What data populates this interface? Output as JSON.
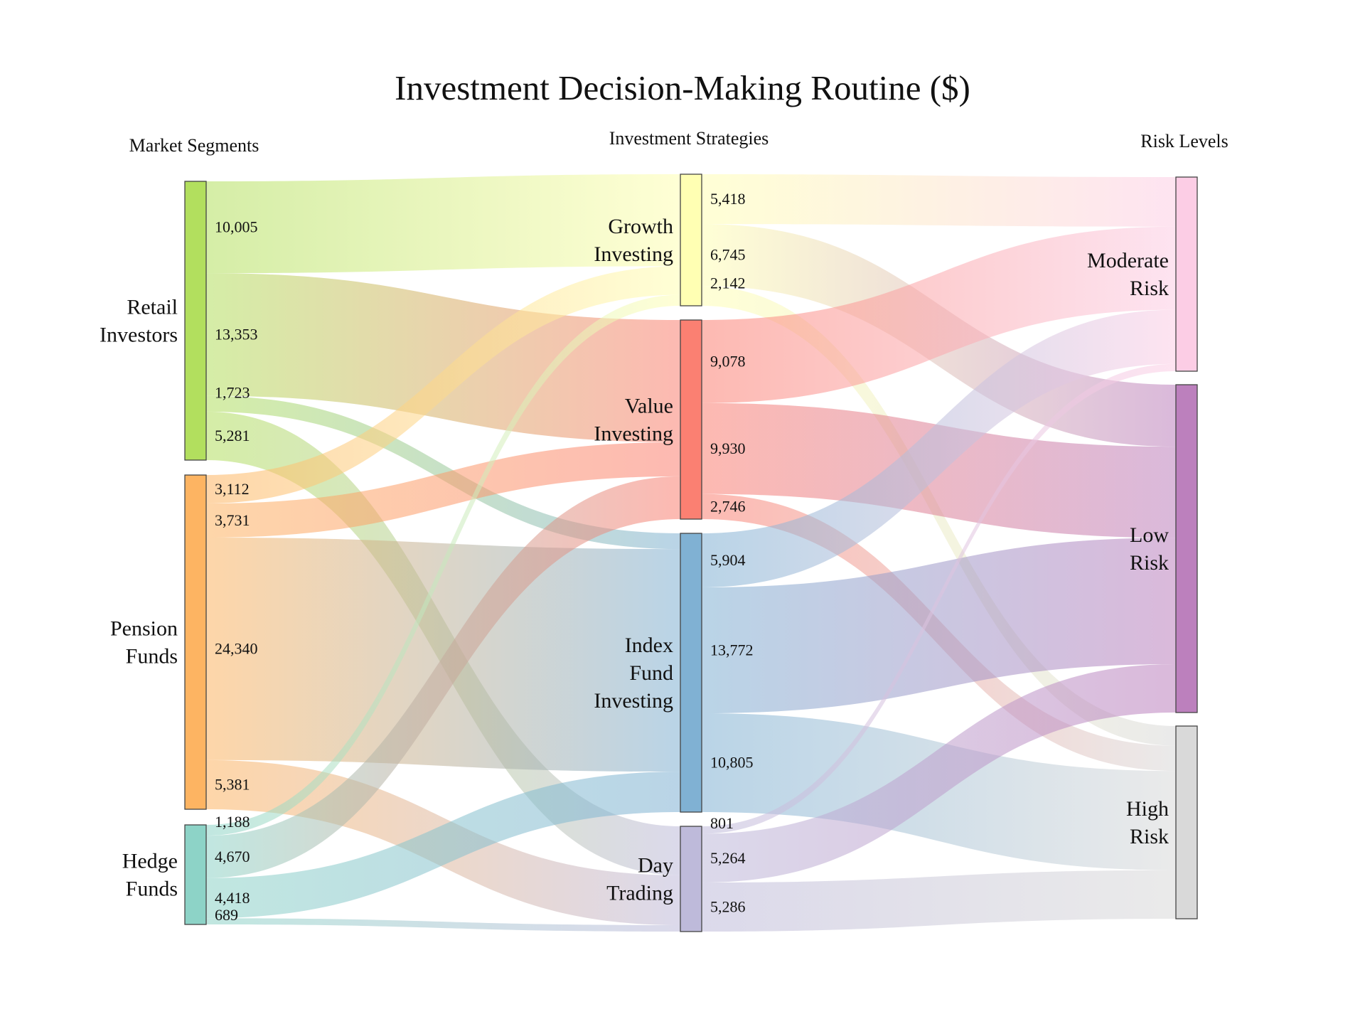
{
  "title": "Investment Decision-Making Routine ($)",
  "column_headers": [
    "Market Segments",
    "Investment Strategies",
    "Risk Levels"
  ],
  "chart_data": {
    "type": "sankey",
    "title": "Investment Decision-Making Routine ($)",
    "columns": [
      "Market Segments",
      "Investment Strategies",
      "Risk Levels"
    ],
    "nodes": [
      {
        "id": "retail",
        "label": [
          "Retail",
          "Investors"
        ],
        "column": 0,
        "color": "#b2df5e"
      },
      {
        "id": "pension",
        "label": [
          "Pension",
          "Funds"
        ],
        "column": 0,
        "color": "#fdb462"
      },
      {
        "id": "hedge",
        "label": [
          "Hedge",
          "Funds"
        ],
        "column": 0,
        "color": "#8dd3c7"
      },
      {
        "id": "growth",
        "label": [
          "Growth",
          "Investing"
        ],
        "column": 1,
        "color": "#ffffb3"
      },
      {
        "id": "value",
        "label": [
          "Value",
          "Investing"
        ],
        "column": 1,
        "color": "#fb8072"
      },
      {
        "id": "index",
        "label": [
          "Index",
          "Fund",
          "Investing"
        ],
        "column": 1,
        "color": "#80b1d3"
      },
      {
        "id": "day",
        "label": [
          "Day",
          "Trading"
        ],
        "column": 1,
        "color": "#bebada"
      },
      {
        "id": "moderate",
        "label": [
          "Moderate",
          "Risk"
        ],
        "column": 2,
        "color": "#fccde5"
      },
      {
        "id": "low",
        "label": [
          "Low",
          "Risk"
        ],
        "column": 2,
        "color": "#bc80bd"
      },
      {
        "id": "high",
        "label": [
          "High",
          "Risk"
        ],
        "column": 2,
        "color": "#d9d9d9"
      }
    ],
    "links": [
      {
        "source": "retail",
        "target": "growth",
        "value": 10005,
        "label": "10,005"
      },
      {
        "source": "retail",
        "target": "value",
        "value": 13353,
        "label": "13,353"
      },
      {
        "source": "retail",
        "target": "index",
        "value": 1723,
        "label": "1,723"
      },
      {
        "source": "retail",
        "target": "day",
        "value": 5281,
        "label": "5,281"
      },
      {
        "source": "pension",
        "target": "growth",
        "value": 3112,
        "label": "3,112"
      },
      {
        "source": "pension",
        "target": "value",
        "value": 3731,
        "label": "3,731"
      },
      {
        "source": "pension",
        "target": "index",
        "value": 24340,
        "label": "24,340"
      },
      {
        "source": "pension",
        "target": "day",
        "value": 5381,
        "label": "5,381"
      },
      {
        "source": "hedge",
        "target": "growth",
        "value": 1188,
        "label": "1,188"
      },
      {
        "source": "hedge",
        "target": "value",
        "value": 4670,
        "label": "4,670"
      },
      {
        "source": "hedge",
        "target": "index",
        "value": 4418,
        "label": "4,418"
      },
      {
        "source": "hedge",
        "target": "day",
        "value": 689,
        "label": "689"
      },
      {
        "source": "growth",
        "target": "moderate",
        "value": 5418,
        "label": "5,418"
      },
      {
        "source": "growth",
        "target": "low",
        "value": 6745,
        "label": "6,745"
      },
      {
        "source": "growth",
        "target": "high",
        "value": 2142,
        "label": "2,142"
      },
      {
        "source": "value",
        "target": "moderate",
        "value": 9078,
        "label": "9,078"
      },
      {
        "source": "value",
        "target": "low",
        "value": 9930,
        "label": "9,930"
      },
      {
        "source": "value",
        "target": "high",
        "value": 2746,
        "label": "2,746"
      },
      {
        "source": "index",
        "target": "moderate",
        "value": 5904,
        "label": "5,904"
      },
      {
        "source": "index",
        "target": "low",
        "value": 13772,
        "label": "13,772"
      },
      {
        "source": "index",
        "target": "high",
        "value": 10805,
        "label": "10,805"
      },
      {
        "source": "day",
        "target": "moderate",
        "value": 801,
        "label": "801"
      },
      {
        "source": "day",
        "target": "low",
        "value": 5264,
        "label": "5,264"
      },
      {
        "source": "day",
        "target": "high",
        "value": 5286,
        "label": "5,286"
      }
    ]
  }
}
